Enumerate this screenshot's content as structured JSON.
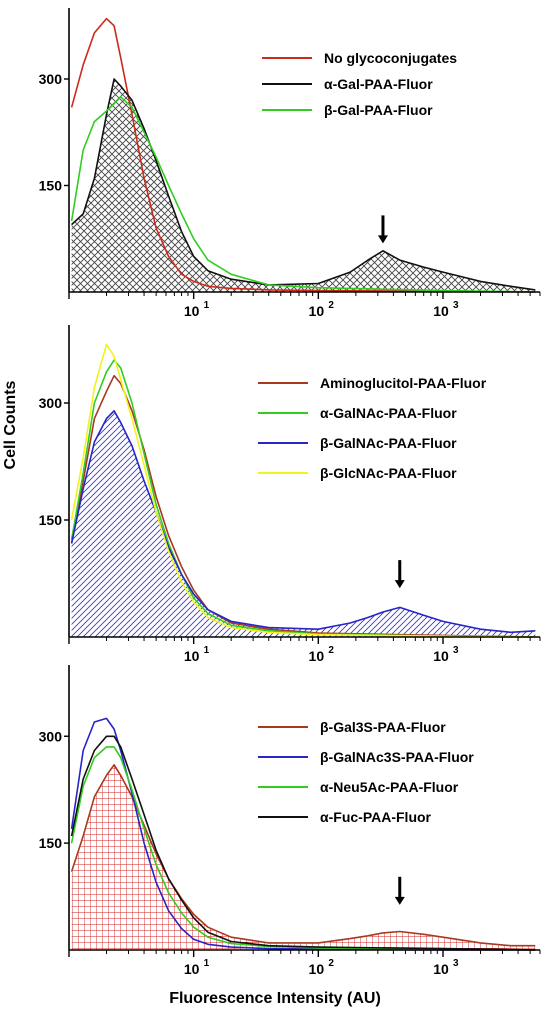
{
  "figure": {
    "ylabel": "Cell Counts",
    "xlabel": "Fluorescence Intensity (AU)"
  },
  "chart_data": [
    {
      "type": "area",
      "panel": "top",
      "x_scale": "log",
      "xlim": [
        1,
        6000
      ],
      "ylim": [
        0,
        400
      ],
      "x_ticks": [
        10,
        100,
        1000
      ],
      "x_tick_labels": [
        "10",
        "10",
        "10"
      ],
      "x_tick_exponents": [
        "1",
        "2",
        "3"
      ],
      "y_ticks": [
        150,
        300
      ],
      "y_tick_labels": [
        "150",
        "300"
      ],
      "legend_position": "top-right",
      "annotations": [
        {
          "type": "arrow",
          "x": 330,
          "y": 60
        }
      ],
      "fill": {
        "series": "α-Gal-PAA-Fluor",
        "pattern": "crosshatch",
        "color": "#444444"
      },
      "series": [
        {
          "name": "No glycoconjugates",
          "color": "#cc2a1a",
          "x": [
            1.05,
            1.3,
            1.6,
            2.0,
            2.3,
            2.6,
            3.2,
            4,
            5,
            6.3,
            8,
            10,
            13,
            20,
            40,
            100,
            1000,
            5500
          ],
          "y": [
            260,
            320,
            365,
            385,
            375,
            330,
            250,
            160,
            90,
            50,
            25,
            15,
            8,
            5,
            3,
            2,
            1,
            0
          ]
        },
        {
          "name": "α-Gal-PAA-Fluor",
          "color": "#111111",
          "x": [
            1.05,
            1.3,
            1.6,
            2.0,
            2.3,
            2.6,
            3.2,
            4,
            5,
            6.3,
            8,
            10,
            13,
            20,
            40,
            100,
            180,
            250,
            330,
            450,
            700,
            1000,
            2000,
            3500,
            5500
          ],
          "y": [
            95,
            110,
            160,
            250,
            300,
            290,
            270,
            230,
            185,
            135,
            85,
            50,
            30,
            18,
            10,
            12,
            28,
            45,
            58,
            45,
            35,
            28,
            15,
            8,
            3
          ]
        },
        {
          "name": "β-Gal-PAA-Fluor",
          "color": "#33cc22",
          "x": [
            1.05,
            1.3,
            1.6,
            2.0,
            2.3,
            2.6,
            3.2,
            4,
            5,
            6.3,
            8,
            10,
            13,
            20,
            40,
            100,
            1000,
            5500
          ],
          "y": [
            100,
            200,
            240,
            255,
            265,
            275,
            260,
            225,
            190,
            150,
            110,
            75,
            45,
            25,
            10,
            6,
            2,
            0
          ]
        }
      ]
    },
    {
      "type": "area",
      "panel": "middle",
      "x_scale": "log",
      "xlim": [
        1,
        6000
      ],
      "ylim": [
        0,
        400
      ],
      "x_ticks": [
        10,
        100,
        1000
      ],
      "x_tick_labels": [
        "10",
        "10",
        "10"
      ],
      "x_tick_exponents": [
        "1",
        "2",
        "3"
      ],
      "y_ticks": [
        150,
        300
      ],
      "y_tick_labels": [
        "150",
        "300"
      ],
      "legend_position": "top-right",
      "annotations": [
        {
          "type": "arrow",
          "x": 450,
          "y": 55
        }
      ],
      "fill": {
        "series": "β-GalNAc-PAA-Fluor",
        "pattern": "diagonal",
        "color": "#3c3cc8"
      },
      "series": [
        {
          "name": "Aminoglucitol-PAA-Fluor",
          "color": "#a8391f",
          "x": [
            1.05,
            1.3,
            1.6,
            2.0,
            2.3,
            2.6,
            3.2,
            4,
            5,
            6.3,
            8,
            10,
            13,
            20,
            40,
            100,
            1000,
            5500
          ],
          "y": [
            120,
            200,
            280,
            315,
            335,
            325,
            290,
            240,
            180,
            130,
            90,
            60,
            35,
            18,
            10,
            5,
            2,
            0
          ]
        },
        {
          "name": "α-GalNAc-PAA-Fluor",
          "color": "#33cc22",
          "x": [
            1.05,
            1.3,
            1.6,
            2.0,
            2.3,
            2.6,
            3.2,
            4,
            5,
            6.3,
            8,
            10,
            13,
            20,
            40,
            100,
            1000,
            5500
          ],
          "y": [
            125,
            210,
            300,
            340,
            355,
            345,
            300,
            235,
            170,
            120,
            80,
            50,
            30,
            15,
            8,
            4,
            1,
            0
          ]
        },
        {
          "name": "β-GalNAc-PAA-Fluor",
          "color": "#2525c8",
          "x": [
            1.05,
            1.3,
            1.6,
            2.0,
            2.3,
            2.6,
            3.2,
            4,
            5,
            6.3,
            8,
            10,
            13,
            20,
            40,
            100,
            180,
            250,
            330,
            450,
            700,
            1000,
            2000,
            3500,
            5500
          ],
          "y": [
            120,
            190,
            250,
            280,
            290,
            275,
            245,
            200,
            160,
            115,
            80,
            55,
            35,
            20,
            12,
            10,
            18,
            25,
            32,
            38,
            28,
            20,
            10,
            6,
            8
          ]
        },
        {
          "name": "β-GlcNAc-PAA-Fluor",
          "color": "#f2f21e",
          "x": [
            1.05,
            1.3,
            1.6,
            2.0,
            2.3,
            2.6,
            3.2,
            4,
            5,
            6.3,
            8,
            10,
            13,
            20,
            40,
            100,
            1000,
            5500
          ],
          "y": [
            150,
            230,
            320,
            375,
            360,
            330,
            280,
            220,
            160,
            110,
            70,
            45,
            25,
            12,
            6,
            3,
            1,
            0
          ]
        }
      ]
    },
    {
      "type": "area",
      "panel": "bottom",
      "x_scale": "log",
      "xlim": [
        1,
        6000
      ],
      "ylim": [
        0,
        400
      ],
      "x_ticks": [
        10,
        100,
        1000
      ],
      "x_tick_labels": [
        "10",
        "10",
        "10"
      ],
      "x_tick_exponents": [
        "1",
        "2",
        "3"
      ],
      "y_ticks": [
        150,
        300
      ],
      "y_tick_labels": [
        "150",
        "300"
      ],
      "legend_position": "top-right",
      "annotations": [
        {
          "type": "arrow",
          "x": 450,
          "y": 55
        }
      ],
      "fill": {
        "series": "β-Gal3S-PAA-Fluor",
        "pattern": "grid",
        "color": "#cc2222"
      },
      "series": [
        {
          "name": "β-Gal3S-PAA-Fluor",
          "color": "#a8391f",
          "x": [
            1.05,
            1.3,
            1.6,
            2.0,
            2.3,
            2.6,
            3.2,
            4,
            5,
            6.3,
            8,
            10,
            13,
            20,
            40,
            100,
            180,
            250,
            330,
            450,
            700,
            1000,
            2000,
            3500,
            5500
          ],
          "y": [
            110,
            160,
            215,
            245,
            260,
            245,
            215,
            175,
            135,
            100,
            72,
            50,
            32,
            18,
            10,
            10,
            16,
            20,
            24,
            26,
            22,
            18,
            10,
            6,
            6
          ]
        },
        {
          "name": "β-GalNAc3S-PAA-Fluor",
          "color": "#2525c8",
          "x": [
            1.05,
            1.3,
            1.6,
            2.0,
            2.3,
            2.6,
            3.2,
            4,
            5,
            6.3,
            8,
            10,
            13,
            20,
            40,
            100,
            1000,
            5500
          ],
          "y": [
            170,
            280,
            320,
            325,
            310,
            280,
            220,
            150,
            95,
            55,
            30,
            15,
            8,
            4,
            2,
            1,
            0,
            0
          ]
        },
        {
          "name": "α-Neu5Ac-PAA-Fluor",
          "color": "#33cc22",
          "x": [
            1.05,
            1.3,
            1.6,
            2.0,
            2.3,
            2.6,
            3.2,
            4,
            5,
            6.3,
            8,
            10,
            13,
            20,
            40,
            100,
            1000,
            5500
          ],
          "y": [
            150,
            230,
            270,
            285,
            285,
            270,
            225,
            170,
            120,
            80,
            52,
            32,
            18,
            9,
            5,
            3,
            1,
            0
          ]
        },
        {
          "name": "α-Fuc-PAA-Fluor",
          "color": "#111111",
          "x": [
            1.05,
            1.3,
            1.6,
            2.0,
            2.3,
            2.6,
            3.2,
            4,
            5,
            6.3,
            8,
            10,
            13,
            20,
            40,
            100,
            1000,
            5500
          ],
          "y": [
            160,
            240,
            280,
            300,
            300,
            285,
            240,
            190,
            140,
            100,
            70,
            45,
            25,
            12,
            6,
            4,
            2,
            0
          ]
        }
      ]
    }
  ]
}
